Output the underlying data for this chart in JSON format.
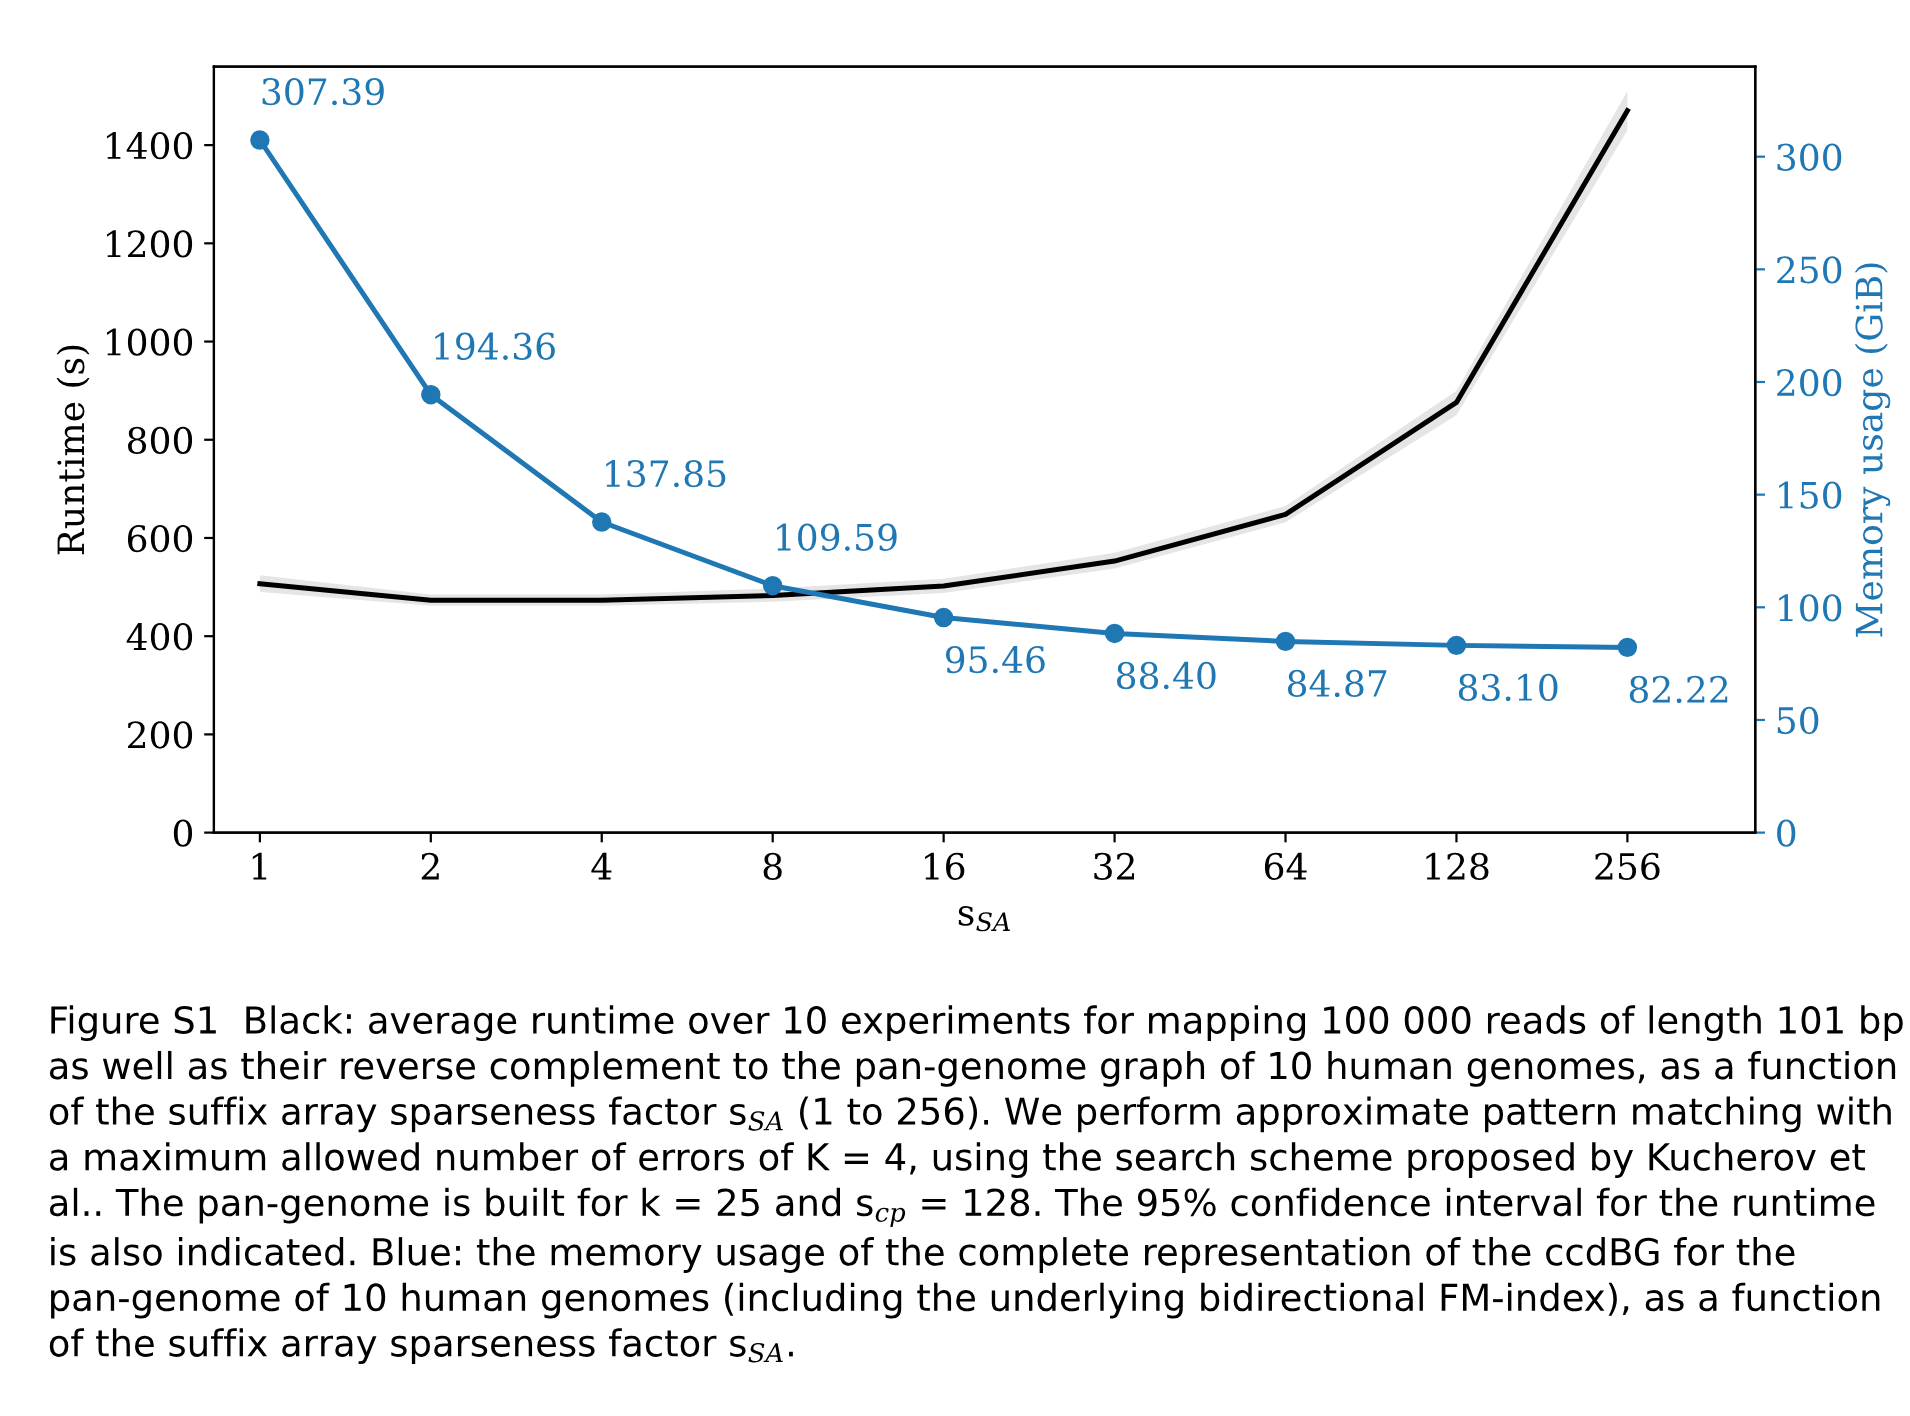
{
  "chart_data": {
    "type": "line",
    "x": [
      1,
      2,
      4,
      8,
      16,
      32,
      64,
      128,
      256
    ],
    "xlabel": "s$_{SA}$",
    "ylabel": "Runtime (s)",
    "y2label": "Memory usage (GiB)",
    "log": "x",
    "xlim": [
      0.83,
      430
    ],
    "xticks": [
      1,
      2,
      4,
      8,
      16,
      32,
      64,
      128,
      256
    ],
    "ylim": [
      0,
      1560
    ],
    "yticks": [
      0,
      200,
      400,
      600,
      800,
      1000,
      1200,
      1400
    ],
    "y2lim": [
      0,
      340
    ],
    "y2ticks": [
      0,
      50,
      100,
      150,
      200,
      250,
      300
    ],
    "series": [
      {
        "color": "#000000",
        "marker": "none",
        "values": [
          507,
          473,
          473,
          483,
          502,
          553,
          648,
          876,
          1470
        ],
        "lower": [
          490,
          462,
          462,
          470,
          488,
          538,
          632,
          850,
          1430
        ],
        "upper": [
          524,
          485,
          485,
          497,
          517,
          570,
          665,
          900,
          1510
        ]
      },
      {
        "color": "#1f77b4",
        "axis": "y2",
        "marker": "circle",
        "values": [
          307.39,
          194.36,
          137.85,
          109.59,
          95.46,
          88.4,
          84.87,
          83.1,
          82.22
        ],
        "value_labels": [
          "307.39",
          "194.36",
          "137.85",
          "109.59",
          "95.46",
          "88.40",
          "84.87",
          "83.10",
          "82.22"
        ]
      }
    ],
    "grid": false,
    "legend": false,
    "annotations": [
      "Figure S1  Black: average runtime over 10 experiments for mapping 100 000 reads of length 101 bp as well as their reverse complement to the pan-genome graph of 10 human genomes, as a function of the suffix array sparseness factor s$_{SA}$ (1 to 256). We perform approximate pattern matching with a maximum allowed number of errors of K = 4, using the search scheme proposed by Kucherov et al.. The pan-genome is built for k = 25 and s$_{cp}$ = 128. The 95% confidence interval for the runtime is also indicated. Blue: the memory usage of the complete representation of the ccdBG for the pan-genome of 10 human genomes (including the underlying bidirectional FM-index), as a function of the suffix array sparseness factor s$_{SA}$."
    ]
  }
}
